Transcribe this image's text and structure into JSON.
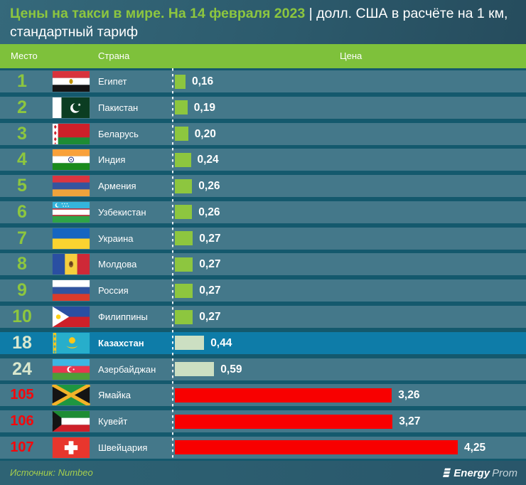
{
  "title": {
    "highlight": "Цены на такси в мире. На 14 февраля 2023",
    "unit_line1": " | долл. США в расчёте на 1 км,",
    "unit_line2": "стандартный тариф"
  },
  "table": {
    "headers": {
      "rank": "Место",
      "country": "Страна",
      "price": "Цена"
    }
  },
  "chart_data": {
    "type": "bar",
    "title": "Цены на такси в мире. На 14 февраля 2023, долл. США в расчёте на 1 км, стандартный тариф",
    "xlabel": "Цена, долл. США за 1 км",
    "xmax": 4.25,
    "rows": [
      {
        "rank": "1",
        "country": "Египет",
        "flag": "egypt",
        "value": 0.16,
        "label": "0,16",
        "style": "top",
        "highlight": false
      },
      {
        "rank": "2",
        "country": "Пакистан",
        "flag": "pakistan",
        "value": 0.19,
        "label": "0,19",
        "style": "top",
        "highlight": false
      },
      {
        "rank": "3",
        "country": "Беларусь",
        "flag": "belarus",
        "value": 0.2,
        "label": "0,20",
        "style": "top",
        "highlight": false
      },
      {
        "rank": "4",
        "country": "Индия",
        "flag": "india",
        "value": 0.24,
        "label": "0,24",
        "style": "top",
        "highlight": false
      },
      {
        "rank": "5",
        "country": "Армения",
        "flag": "armenia",
        "value": 0.26,
        "label": "0,26",
        "style": "top",
        "highlight": false
      },
      {
        "rank": "6",
        "country": "Узбекистан",
        "flag": "uzbekistan",
        "value": 0.26,
        "label": "0,26",
        "style": "top",
        "highlight": false
      },
      {
        "rank": "7",
        "country": "Украина",
        "flag": "ukraine",
        "value": 0.27,
        "label": "0,27",
        "style": "top",
        "highlight": false
      },
      {
        "rank": "8",
        "country": "Молдова",
        "flag": "moldova",
        "value": 0.27,
        "label": "0,27",
        "style": "top",
        "highlight": false
      },
      {
        "rank": "9",
        "country": "Россия",
        "flag": "russia",
        "value": 0.27,
        "label": "0,27",
        "style": "top",
        "highlight": false
      },
      {
        "rank": "10",
        "country": "Филиппины",
        "flag": "philippines",
        "value": 0.27,
        "label": "0,27",
        "style": "top",
        "highlight": false
      },
      {
        "rank": "18",
        "country": "Казахстан",
        "flag": "kazakhstan",
        "value": 0.44,
        "label": "0,44",
        "style": "mid",
        "highlight": true
      },
      {
        "rank": "24",
        "country": "Азербайджан",
        "flag": "azerbaijan",
        "value": 0.59,
        "label": "0,59",
        "style": "mid",
        "highlight": false
      },
      {
        "rank": "105",
        "country": "Ямайка",
        "flag": "jamaica",
        "value": 3.26,
        "label": "3,26",
        "style": "red",
        "highlight": false
      },
      {
        "rank": "106",
        "country": "Кувейт",
        "flag": "kuwait",
        "value": 3.27,
        "label": "3,27",
        "style": "red",
        "highlight": false
      },
      {
        "rank": "107",
        "country": "Швейцария",
        "flag": "switzerland",
        "value": 4.25,
        "label": "4,25",
        "style": "red",
        "highlight": false
      }
    ]
  },
  "footer": {
    "source": "Источник: Numbeo",
    "brand_bold": "Energy",
    "brand_light": "Prom"
  },
  "colors": {
    "accent_green": "#8DC63F",
    "pale_green_bar": "#CCDFC2",
    "red_bar": "#F80000",
    "red_rank": "#F5070B",
    "highlight_row": "#0E7CA8",
    "row_bg": "#44788A",
    "table_bg": "#14596D",
    "header_band": "#7EC13B",
    "source_text": "#A5CE4E"
  }
}
